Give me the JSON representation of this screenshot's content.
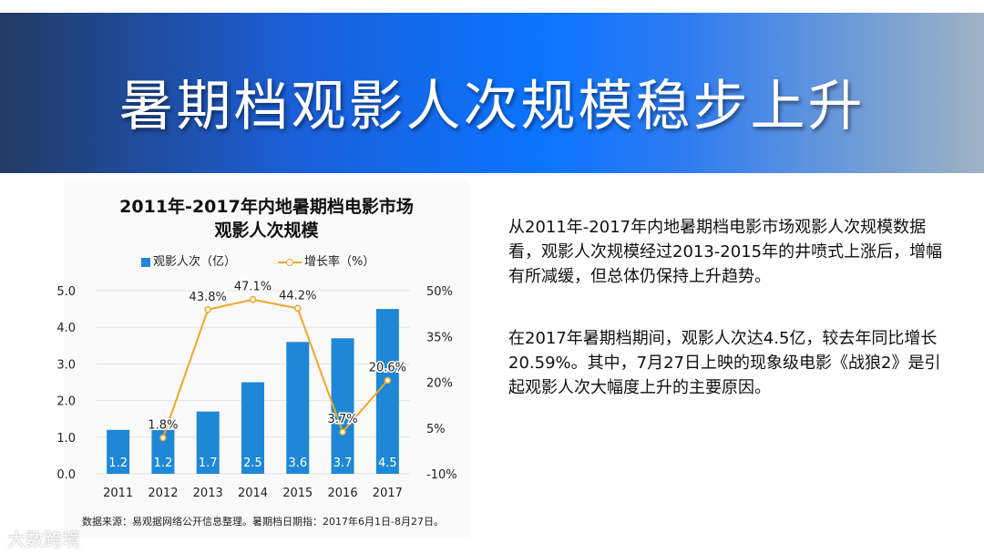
{
  "header": {
    "title": "暑期档观影人次规模稳步上升"
  },
  "chart": {
    "title_line1": "2011年-2017年内地暑期档电影市场",
    "title_line2": "观影人次规模",
    "legend_bar": "观影人次（亿）",
    "legend_line": "增长率（%）",
    "source": "数据来源：易观据网络公开信息整理。暑期档日期指：2017年6月1日-8月27日。"
  },
  "chart_data": {
    "type": "bar",
    "title": "2011年-2017年内地暑期档电影市场观影人次规模",
    "categories": [
      "2011",
      "2012",
      "2013",
      "2014",
      "2015",
      "2016",
      "2017"
    ],
    "series": [
      {
        "name": "观影人次（亿）",
        "type": "bar",
        "axis": "left",
        "values": [
          1.2,
          1.2,
          1.7,
          2.5,
          3.6,
          3.7,
          4.5
        ],
        "labels": [
          "1.2",
          "1.2",
          "1.7",
          "2.5",
          "3.6",
          "3.7",
          "4.5"
        ]
      },
      {
        "name": "增长率（%）",
        "type": "line",
        "axis": "right",
        "values": [
          null,
          1.8,
          43.8,
          47.1,
          44.2,
          3.7,
          20.6
        ],
        "labels": [
          "",
          "1.8%",
          "43.8%",
          "47.1%",
          "44.2%",
          "3.7%",
          "20.6%"
        ]
      }
    ],
    "ylim_left": [
      0,
      5
    ],
    "yticks_left": [
      "0.0",
      "1.0",
      "2.0",
      "3.0",
      "4.0",
      "5.0"
    ],
    "ylim_right": [
      -10,
      50
    ],
    "yticks_right": [
      "-10%",
      "5%",
      "20%",
      "35%",
      "50%"
    ],
    "grid": true,
    "legend": "top"
  },
  "text": {
    "para1": "从2011年-2017年内地暑期档电影市场观影人次规模数据看，观影人次规模经过2013-2015年的井喷式上涨后，增幅有所减缓，但总体仍保持上升趋势。",
    "para2": "在2017年暑期档期间，观影人次达4.5亿，较去年同比增长20.59%。其中，7月27日上映的现象级电影《战狼2》是引起观影人次大幅度上升的主要原因。"
  },
  "watermark": "大数跨境",
  "colors": {
    "bar": "#1e88d6",
    "line": "#f0a528",
    "banner_mid": "#0b74ff"
  }
}
